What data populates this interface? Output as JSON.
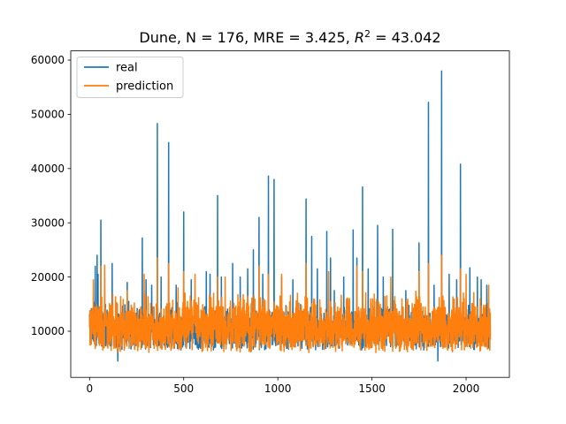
{
  "chart_data": {
    "type": "line",
    "title": "Dune, N = 176, MRE = 3.425, R² = 43.042",
    "title_parts": {
      "prefix": "Dune, N = 176, MRE = 3.425, ",
      "r": "R",
      "sup": "2",
      "suffix": " = 43.042"
    },
    "xlabel": "",
    "ylabel": "",
    "xlim": [
      -100,
      2230
    ],
    "ylim": [
      1500,
      61700
    ],
    "xticks": [
      0,
      500,
      1000,
      1500,
      2000
    ],
    "yticks": [
      10000,
      20000,
      30000,
      40000,
      50000,
      60000
    ],
    "grid": false,
    "legend": {
      "position": "top-left"
    },
    "n_points": 2130,
    "series": [
      {
        "name": "real",
        "color": "#1f77b4",
        "baseline": {
          "min": 6500,
          "max": 15500
        },
        "peaks": [
          [
            0,
            13200
          ],
          [
            30,
            22000
          ],
          [
            40,
            24000
          ],
          [
            45,
            20500
          ],
          [
            60,
            30500
          ],
          [
            80,
            20000
          ],
          [
            120,
            22500
          ],
          [
            150,
            4500
          ],
          [
            200,
            19000
          ],
          [
            280,
            27200
          ],
          [
            300,
            19500
          ],
          [
            330,
            18500
          ],
          [
            360,
            48300
          ],
          [
            380,
            20000
          ],
          [
            420,
            44800
          ],
          [
            460,
            18500
          ],
          [
            500,
            32000
          ],
          [
            540,
            19500
          ],
          [
            620,
            21000
          ],
          [
            640,
            20500
          ],
          [
            680,
            35000
          ],
          [
            700,
            20000
          ],
          [
            760,
            22500
          ],
          [
            800,
            20000
          ],
          [
            840,
            21500
          ],
          [
            870,
            25000
          ],
          [
            900,
            31000
          ],
          [
            920,
            20500
          ],
          [
            950,
            38600
          ],
          [
            980,
            38000
          ],
          [
            1020,
            20000
          ],
          [
            1080,
            19500
          ],
          [
            1150,
            34400
          ],
          [
            1180,
            27500
          ],
          [
            1210,
            21500
          ],
          [
            1260,
            28400
          ],
          [
            1280,
            23500
          ],
          [
            1300,
            17500
          ],
          [
            1350,
            20000
          ],
          [
            1400,
            28700
          ],
          [
            1420,
            23500
          ],
          [
            1450,
            36600
          ],
          [
            1480,
            21500
          ],
          [
            1530,
            29500
          ],
          [
            1560,
            20000
          ],
          [
            1610,
            28800
          ],
          [
            1680,
            17500
          ],
          [
            1750,
            26300
          ],
          [
            1800,
            52200
          ],
          [
            1830,
            18500
          ],
          [
            1850,
            4500
          ],
          [
            1870,
            58000
          ],
          [
            1910,
            20500
          ],
          [
            1950,
            19500
          ],
          [
            1970,
            40800
          ],
          [
            2020,
            21700
          ],
          [
            2060,
            20000
          ],
          [
            2080,
            19500
          ],
          [
            2110,
            18500
          ],
          [
            2125,
            14000
          ]
        ]
      },
      {
        "name": "prediction",
        "color": "#ff7f0e",
        "baseline": {
          "min": 6000,
          "max": 17500
        },
        "peaks": [
          [
            20,
            19500
          ],
          [
            60,
            22000
          ],
          [
            80,
            22200
          ],
          [
            200,
            17500
          ],
          [
            290,
            20500
          ],
          [
            360,
            23500
          ],
          [
            420,
            22500
          ],
          [
            470,
            18000
          ],
          [
            500,
            21000
          ],
          [
            560,
            20500
          ],
          [
            680,
            20000
          ],
          [
            720,
            20000
          ],
          [
            900,
            22000
          ],
          [
            950,
            20500
          ],
          [
            1020,
            20500
          ],
          [
            1150,
            22500
          ],
          [
            1270,
            21000
          ],
          [
            1420,
            22000
          ],
          [
            1450,
            21000
          ],
          [
            1600,
            20000
          ],
          [
            1750,
            21000
          ],
          [
            1800,
            22500
          ],
          [
            1870,
            24000
          ],
          [
            1970,
            21500
          ],
          [
            2000,
            20500
          ],
          [
            2120,
            18500
          ]
        ]
      }
    ]
  }
}
